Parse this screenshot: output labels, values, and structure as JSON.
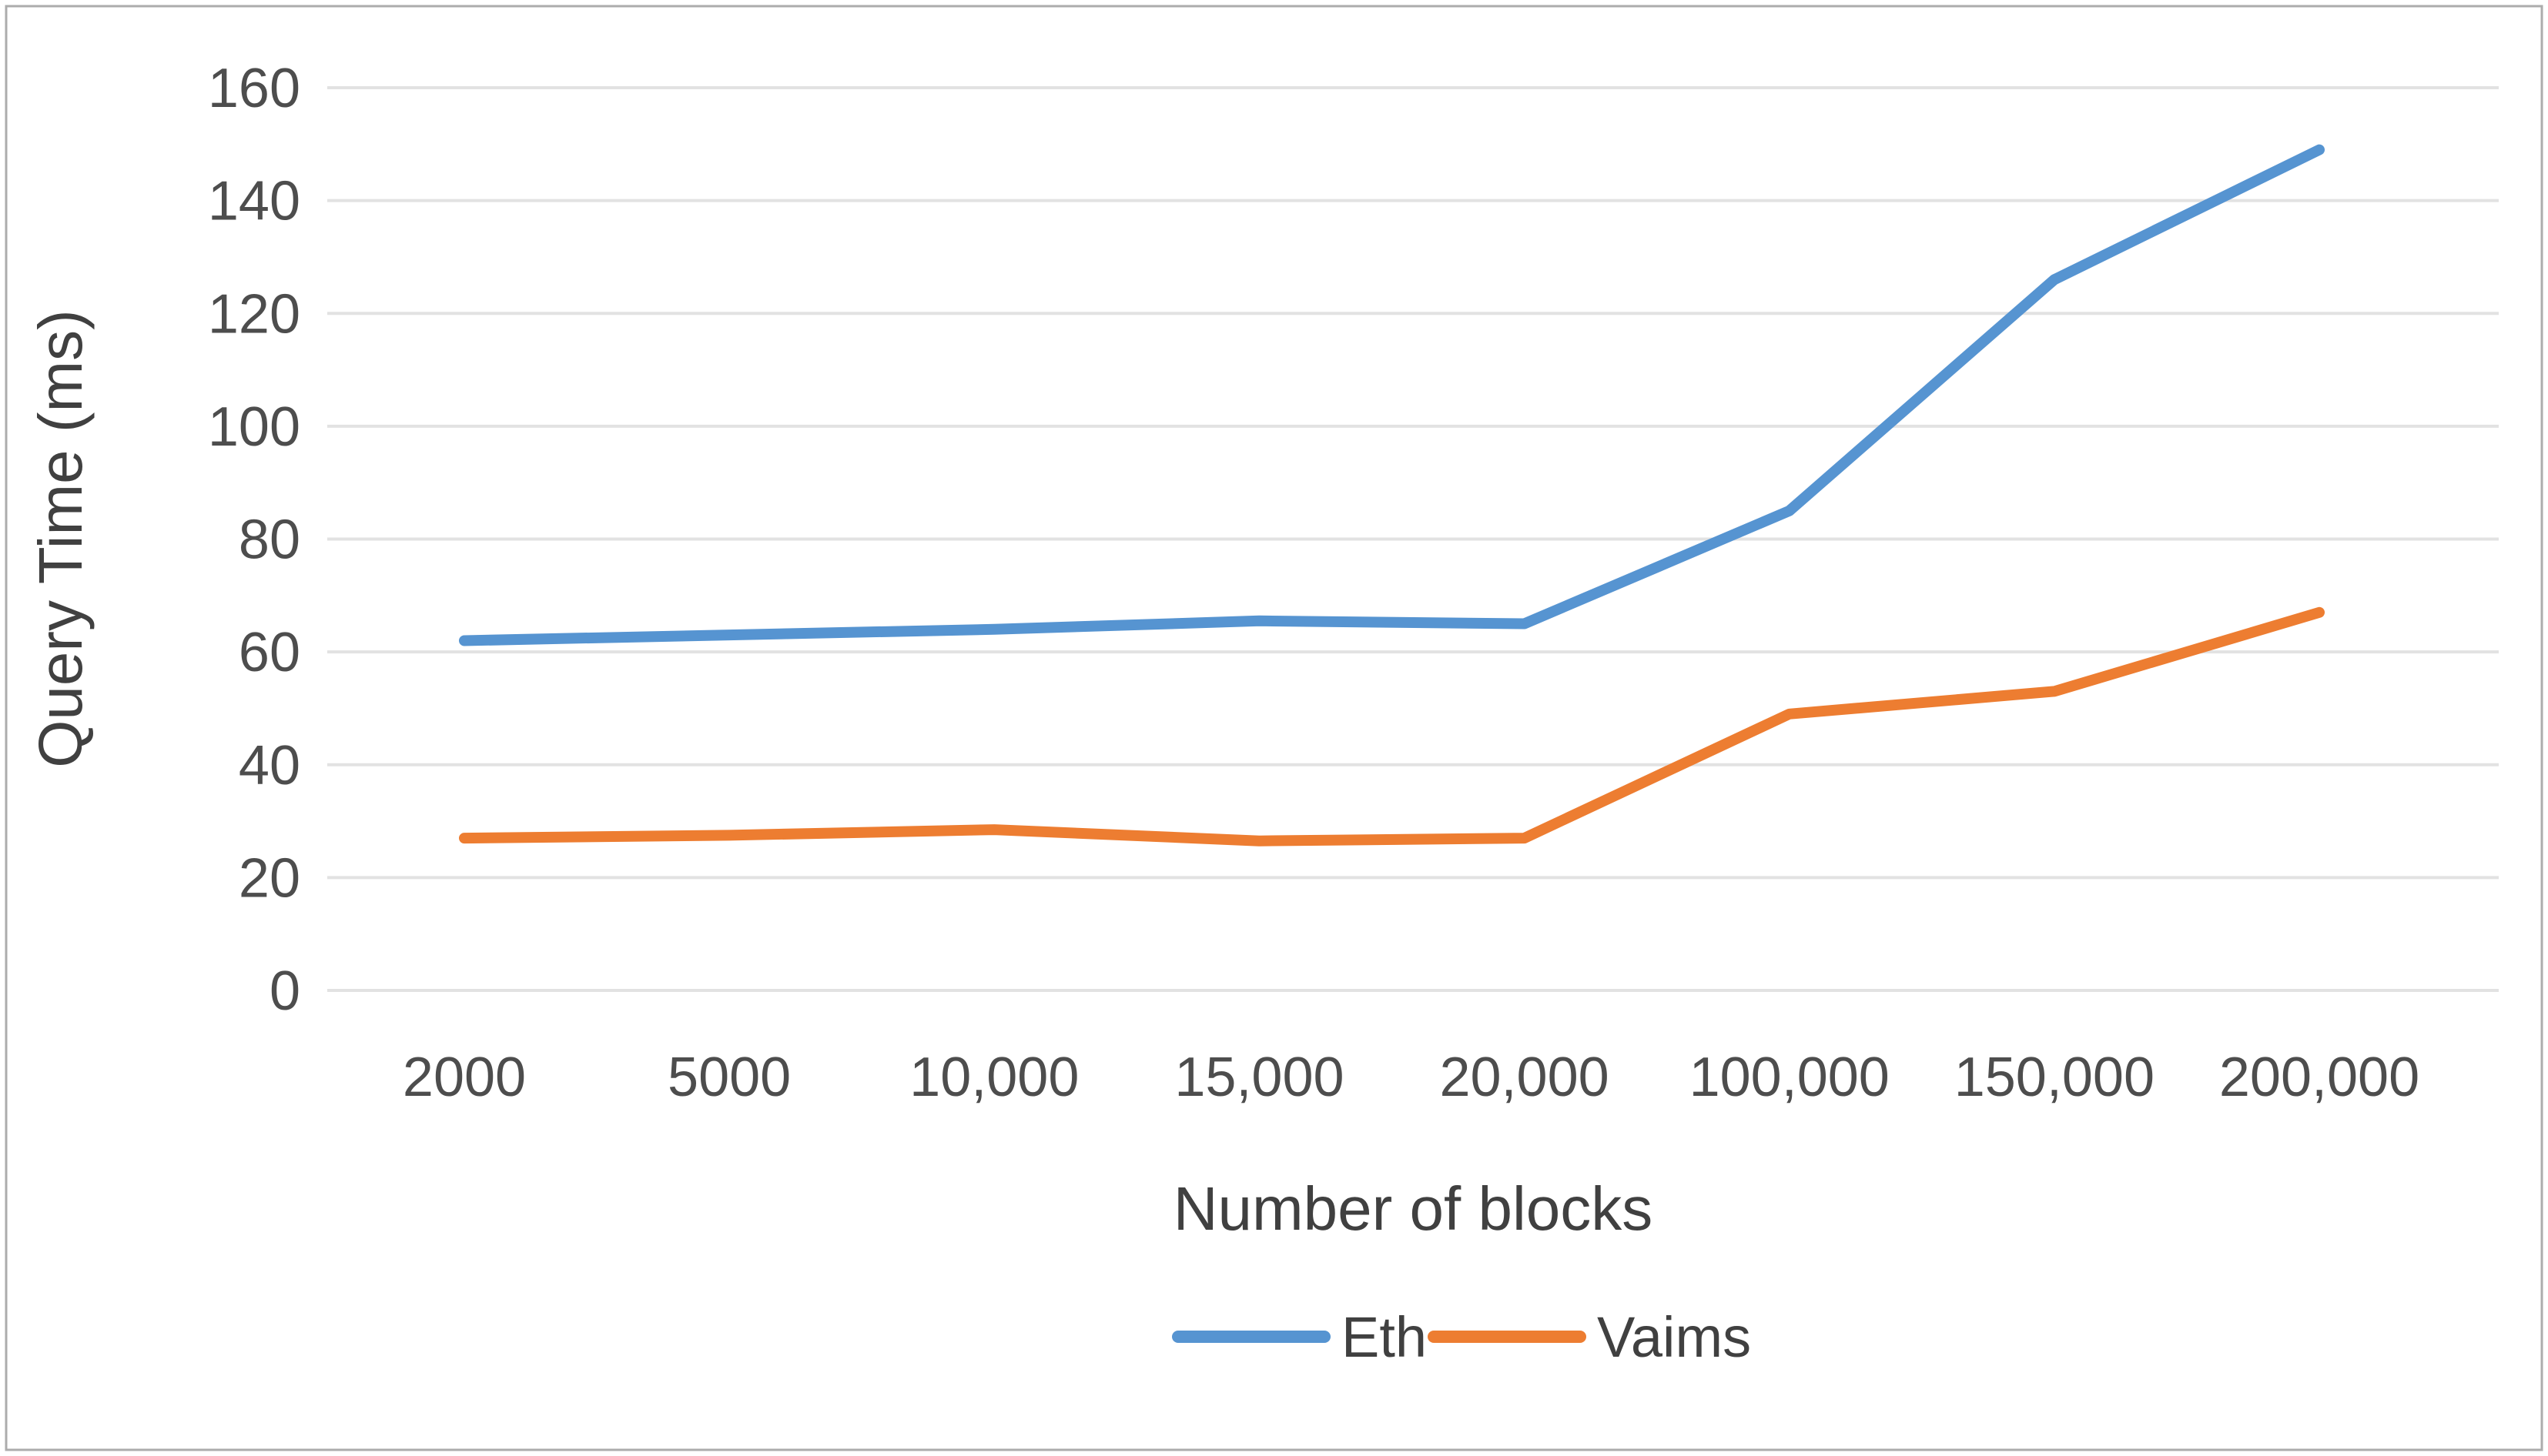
{
  "chart_data": {
    "type": "line",
    "title": "",
    "xlabel": "Number of blocks",
    "ylabel": "Query Time（ms）",
    "categories": [
      "2000",
      "5000",
      "10,000",
      "15,000",
      "20,000",
      "100,000",
      "150,000",
      "200,000"
    ],
    "series": [
      {
        "name": "Eth",
        "color": "#5694D1",
        "values": [
          62,
          63,
          64,
          65.5,
          65,
          85,
          126,
          149
        ]
      },
      {
        "name": "Vaims",
        "color": "#ED7D31",
        "values": [
          27,
          27.5,
          28.5,
          26.5,
          27,
          49,
          53,
          67
        ]
      }
    ],
    "ylim": [
      0,
      160
    ],
    "yticks": [
      0,
      20,
      40,
      60,
      80,
      100,
      120,
      140,
      160
    ],
    "grid": true,
    "legend_position": "bottom",
    "colors": {
      "gridline": "#E2E2E2",
      "tick_label": "#4D4D4D",
      "axis_title": "#404040",
      "legend_text": "#404040",
      "border": "#ACACAC",
      "background": "#FFFFFF"
    }
  }
}
